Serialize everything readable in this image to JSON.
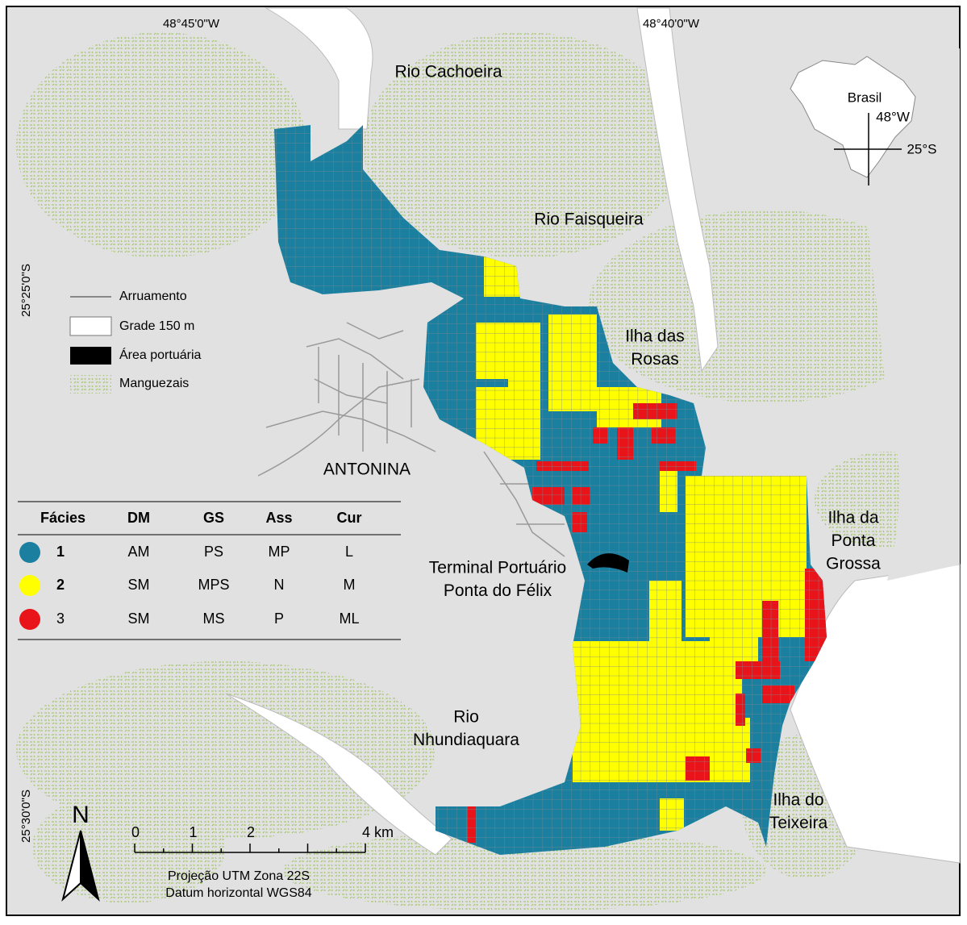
{
  "coordinates": {
    "top": [
      "48°45'0\"W",
      "48°40'0\"W"
    ],
    "left": [
      "25°25'0\"S",
      "25°30'0\"S"
    ]
  },
  "place_labels": [
    [
      "Rio Cachoeira"
    ],
    [
      "Rio Faisqueira"
    ],
    [
      "Ilha das",
      "Rosas"
    ],
    [
      "ANTONINA"
    ],
    [
      "Ilha da",
      "Ponta",
      "Grossa"
    ],
    [
      "Terminal Portuário",
      "Ponta do Félix"
    ],
    [
      "Rio",
      "Nhundiaquara"
    ],
    [
      "Ilha do",
      "Teixeira"
    ]
  ],
  "map_legend": [
    "Arruamento",
    "Grade 150 m",
    "Área portuária",
    "Manguezais"
  ],
  "facies_table": {
    "header": [
      "Fácies",
      "DM",
      "GS",
      "Ass",
      "Cur"
    ],
    "rows": [
      [
        "1",
        "AM",
        "PS",
        "MP",
        "L"
      ],
      [
        "2",
        "SM",
        "MPS",
        "N",
        "M"
      ],
      [
        "3",
        "SM",
        "MS",
        "P",
        "ML"
      ]
    ],
    "colors": [
      "#1b7fa0",
      "#ffff00",
      "#e8141a"
    ]
  },
  "scale_bar": {
    "ticks": [
      {
        "value": 0,
        "label": "0"
      },
      {
        "value": 1,
        "label": "1"
      },
      {
        "value": 2,
        "label": "2"
      },
      {
        "value": 4,
        "label": "4 km"
      }
    ]
  },
  "projection": [
    "Projeção UTM Zona 22S",
    "Datum horizontal WGS84"
  ],
  "north": "N",
  "inset": {
    "label": "Brasil",
    "lon": "48°W",
    "lat": "25°S"
  }
}
